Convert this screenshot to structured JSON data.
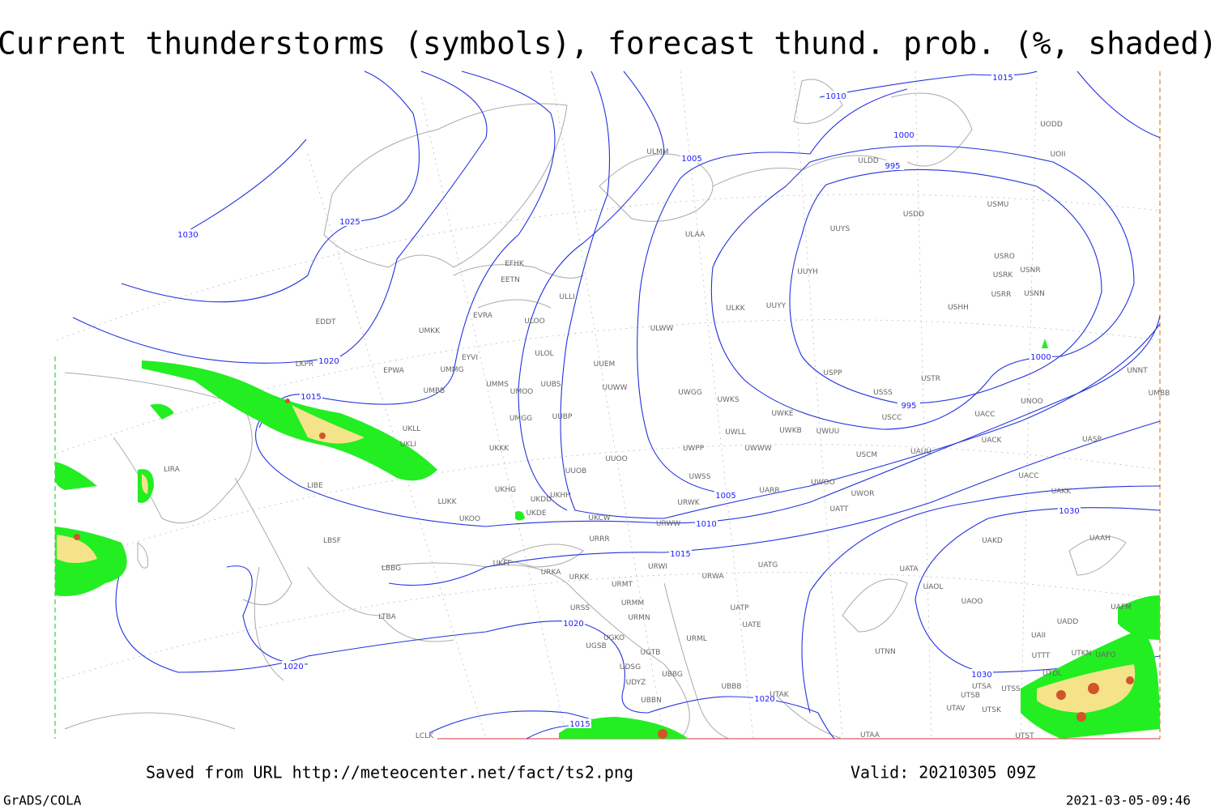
{
  "header": {
    "title": "Current thunderstorms (symbols), forecast thund. prob. (%, shaded)"
  },
  "isobar_labels": [
    "1030",
    "1025",
    "1020",
    "1015",
    "1010",
    "1015",
    "1005",
    "1000",
    "995",
    "1000",
    "995",
    "1005",
    "1010",
    "1015",
    "1030",
    "1030",
    "1020",
    "1020",
    "1020",
    "1015"
  ],
  "stations": [
    "ULMM",
    "ULDD",
    "USDD",
    "USMU",
    "UUYS",
    "ULAA",
    "EFHK",
    "EETN",
    "USRO",
    "USRK",
    "USNR",
    "UUYH",
    "USRR",
    "USNN",
    "ULLI",
    "ULKK",
    "UUYY",
    "USHH",
    "EVRA",
    "ULOO",
    "EDDT",
    "UMKK",
    "ULWW",
    "ULOL",
    "EYVI",
    "UUEM",
    "LKPR",
    "EPWA",
    "UMMG",
    "USPP",
    "USTR",
    "UMMS",
    "UUBS",
    "UMOO",
    "UUWW",
    "UMBB",
    "USSS",
    "UNNT",
    "UWGG",
    "UWKS",
    "UNOO",
    "UMBB",
    "UWKE",
    "USCC",
    "UACC",
    "UMGG",
    "UUBP",
    "UKLL",
    "UWKB",
    "UWLL",
    "UWUU",
    "UACK",
    "UKLI",
    "UWWW",
    "UWPP",
    "UKKK",
    "USCM",
    "UAUU",
    "UASP",
    "UUOO",
    "LIRA",
    "UUOB",
    "UWSS",
    "UACC",
    "LIBE",
    "UKHG",
    "UKDD",
    "UKHH",
    "UARR",
    "UWOO",
    "UWOR",
    "UAKK",
    "LUKK",
    "UKDE",
    "URWK",
    "UATT",
    "UKOO",
    "UKCW",
    "URWW",
    "LBSF",
    "URRR",
    "UAKD",
    "UAAH",
    "LBBG",
    "UKFF",
    "UATG",
    "URWI",
    "URKA",
    "UATA",
    "URKK",
    "URWA",
    "URMT",
    "UAOL",
    "URMM",
    "URSS",
    "UATP",
    "UAOO",
    "UAFM",
    "LTBA",
    "URMN",
    "UATE",
    "UADD",
    "UGKO",
    "URML",
    "UAII",
    "UGSB",
    "UTNN",
    "UGTB",
    "UTTT",
    "UTKN",
    "UAFO",
    "UDSG",
    "UBBG",
    "UTDL",
    "UDYZ",
    "UBBB",
    "UTSA",
    "UTSS",
    "UTAK",
    "UTSB",
    "UBBN",
    "UTAV",
    "UTSK",
    "LCLK",
    "UTAA",
    "UTST",
    "UODD",
    "UOII"
  ],
  "footer": {
    "source": "Saved from URL http://meteocenter.net/fact/ts2.png",
    "valid": "Valid: 20210305 09Z",
    "software": "GrADS/COLA",
    "timestamp": "2021-03-05-09:46"
  }
}
